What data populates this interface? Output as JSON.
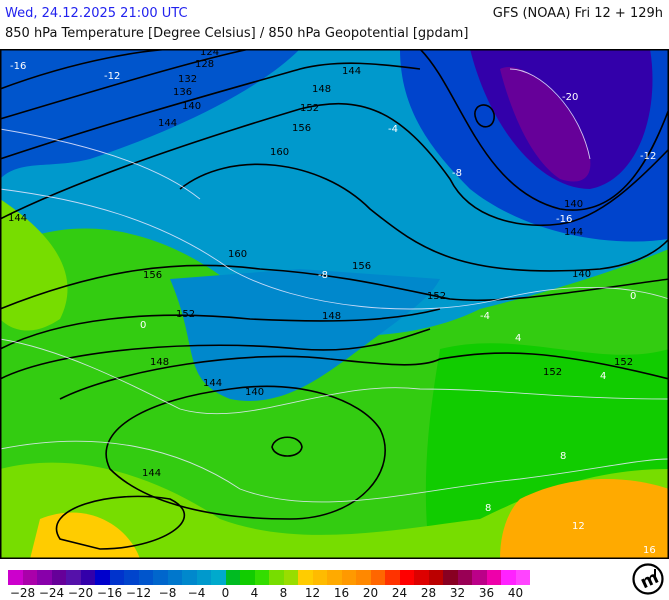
{
  "header": {
    "valid_time": "Wed, 24.12.2025 21:00 UTC",
    "model_run": "GFS (NOAA) Fri 12 + 129h",
    "parameter": "850 hPa Temperature [Degree Celsius] / 850 hPa Geopotential [gpdam]"
  },
  "map": {
    "geopotential_labels": [
      "124",
      "128",
      "132",
      "136",
      "140",
      "144",
      "148",
      "152",
      "156",
      "160",
      "160",
      "156",
      "152",
      "148",
      "144",
      "140",
      "144",
      "152",
      "156",
      "148",
      "144",
      "140",
      "140",
      "144",
      "148",
      "152",
      "152",
      "136",
      "140",
      "144"
    ],
    "temperature_labels": [
      "-16",
      "-12",
      "-8",
      "-4",
      "0",
      "4",
      "8",
      "-20",
      "-16",
      "-12",
      "-8",
      "-4",
      "0",
      "4",
      "8",
      "12",
      "16"
    ]
  },
  "colorbar": {
    "colors": [
      "#cc00cc",
      "#aa00aa",
      "#8800aa",
      "#660099",
      "#5511aa",
      "#3300aa",
      "#0000cc",
      "#0033cc",
      "#0044cc",
      "#0055cc",
      "#0066cc",
      "#0077cc",
      "#0088cc",
      "#0099cc",
      "#00aacc",
      "#00bb22",
      "#11cc00",
      "#33dd00",
      "#77dd00",
      "#99dd00",
      "#ffcc00",
      "#ffbb00",
      "#ffaa00",
      "#ff9900",
      "#ff8800",
      "#ff6600",
      "#ff3300",
      "#ff0000",
      "#dd0000",
      "#bb0000",
      "#880022",
      "#990055",
      "#bb0088",
      "#ee00aa",
      "#ff22ff",
      "#ff44ff"
    ],
    "labels": [
      "−28",
      "−24",
      "−20",
      "−16",
      "−12",
      "−8",
      "−4",
      "0",
      "4",
      "8",
      "12",
      "16",
      "20",
      "24",
      "28",
      "32",
      "36",
      "40"
    ]
  },
  "logo": {
    "text": "m"
  }
}
